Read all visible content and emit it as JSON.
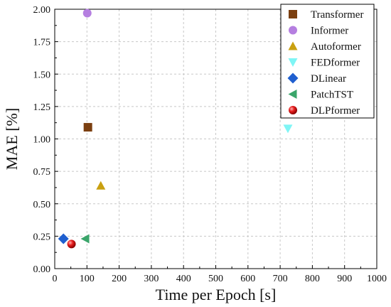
{
  "chart_data": {
    "type": "scatter",
    "xlabel": "Time per Epoch [s]",
    "ylabel": "MAE [%]",
    "xlim": [
      0,
      1000
    ],
    "ylim": [
      0,
      2.0
    ],
    "x_ticks": [
      "0",
      "100",
      "200",
      "300",
      "400",
      "500",
      "600",
      "700",
      "800",
      "900",
      "1000"
    ],
    "y_ticks": [
      "0.00",
      "0.25",
      "0.50",
      "0.75",
      "1.00",
      "1.25",
      "1.50",
      "1.75",
      "2.00"
    ],
    "grid": true,
    "legend_position": "top-right",
    "series": [
      {
        "name": "Transformer",
        "marker": "square",
        "color": "#7b3f10",
        "points": [
          [
            103,
            1.09
          ]
        ]
      },
      {
        "name": "Informer",
        "marker": "circle",
        "color": "#b57fe0",
        "points": [
          [
            101,
            1.97
          ]
        ]
      },
      {
        "name": "Autoformer",
        "marker": "triangle-up",
        "color": "#c9a010",
        "points": [
          [
            143,
            0.64
          ]
        ]
      },
      {
        "name": "FEDformer",
        "marker": "triangle-down",
        "color": "#7ff5f5",
        "points": [
          [
            724,
            1.08
          ]
        ]
      },
      {
        "name": "DLinear",
        "marker": "diamond",
        "color": "#1f5fcf",
        "points": [
          [
            27,
            0.23
          ]
        ]
      },
      {
        "name": "PatchTST",
        "marker": "triangle-left",
        "color": "#3aa56a",
        "points": [
          [
            95,
            0.23
          ]
        ]
      },
      {
        "name": "DLPformer",
        "marker": "sphere",
        "color": "#e01010",
        "points": [
          [
            52,
            0.19
          ]
        ]
      }
    ]
  }
}
